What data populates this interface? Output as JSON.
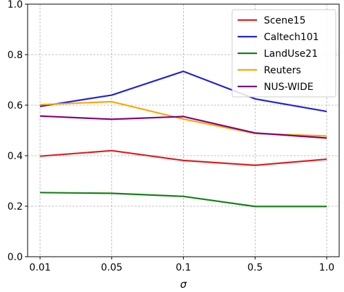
{
  "chart_data": {
    "type": "line",
    "title": "",
    "xlabel": "σ",
    "ylabel": "",
    "categories": [
      "0.01",
      "0.05",
      "0.1",
      "0.5",
      "1.0"
    ],
    "ylim": [
      0.0,
      1.0
    ],
    "yticks": [
      "0.0",
      "0.2",
      "0.4",
      "0.6",
      "0.8",
      "1.0"
    ],
    "grid": true,
    "grid_style": "dashed",
    "legend_position": "top-right",
    "series": [
      {
        "name": "Scene15",
        "color": "#e41a1a",
        "values": [
          0.398,
          0.42,
          0.381,
          0.362,
          0.386
        ]
      },
      {
        "name": "Caltech101",
        "color": "#1f1fdc",
        "values": [
          0.595,
          0.64,
          0.734,
          0.625,
          0.575
        ]
      },
      {
        "name": "LandUse21",
        "color": "#128012",
        "values": [
          0.254,
          0.251,
          0.239,
          0.199,
          0.199
        ]
      },
      {
        "name": "Reuters",
        "color": "#ffa500",
        "values": [
          0.602,
          0.614,
          0.545,
          0.488,
          0.478
        ]
      },
      {
        "name": "NUS-WIDE",
        "color": "#800080",
        "values": [
          0.557,
          0.544,
          0.555,
          0.49,
          0.47
        ]
      }
    ]
  }
}
